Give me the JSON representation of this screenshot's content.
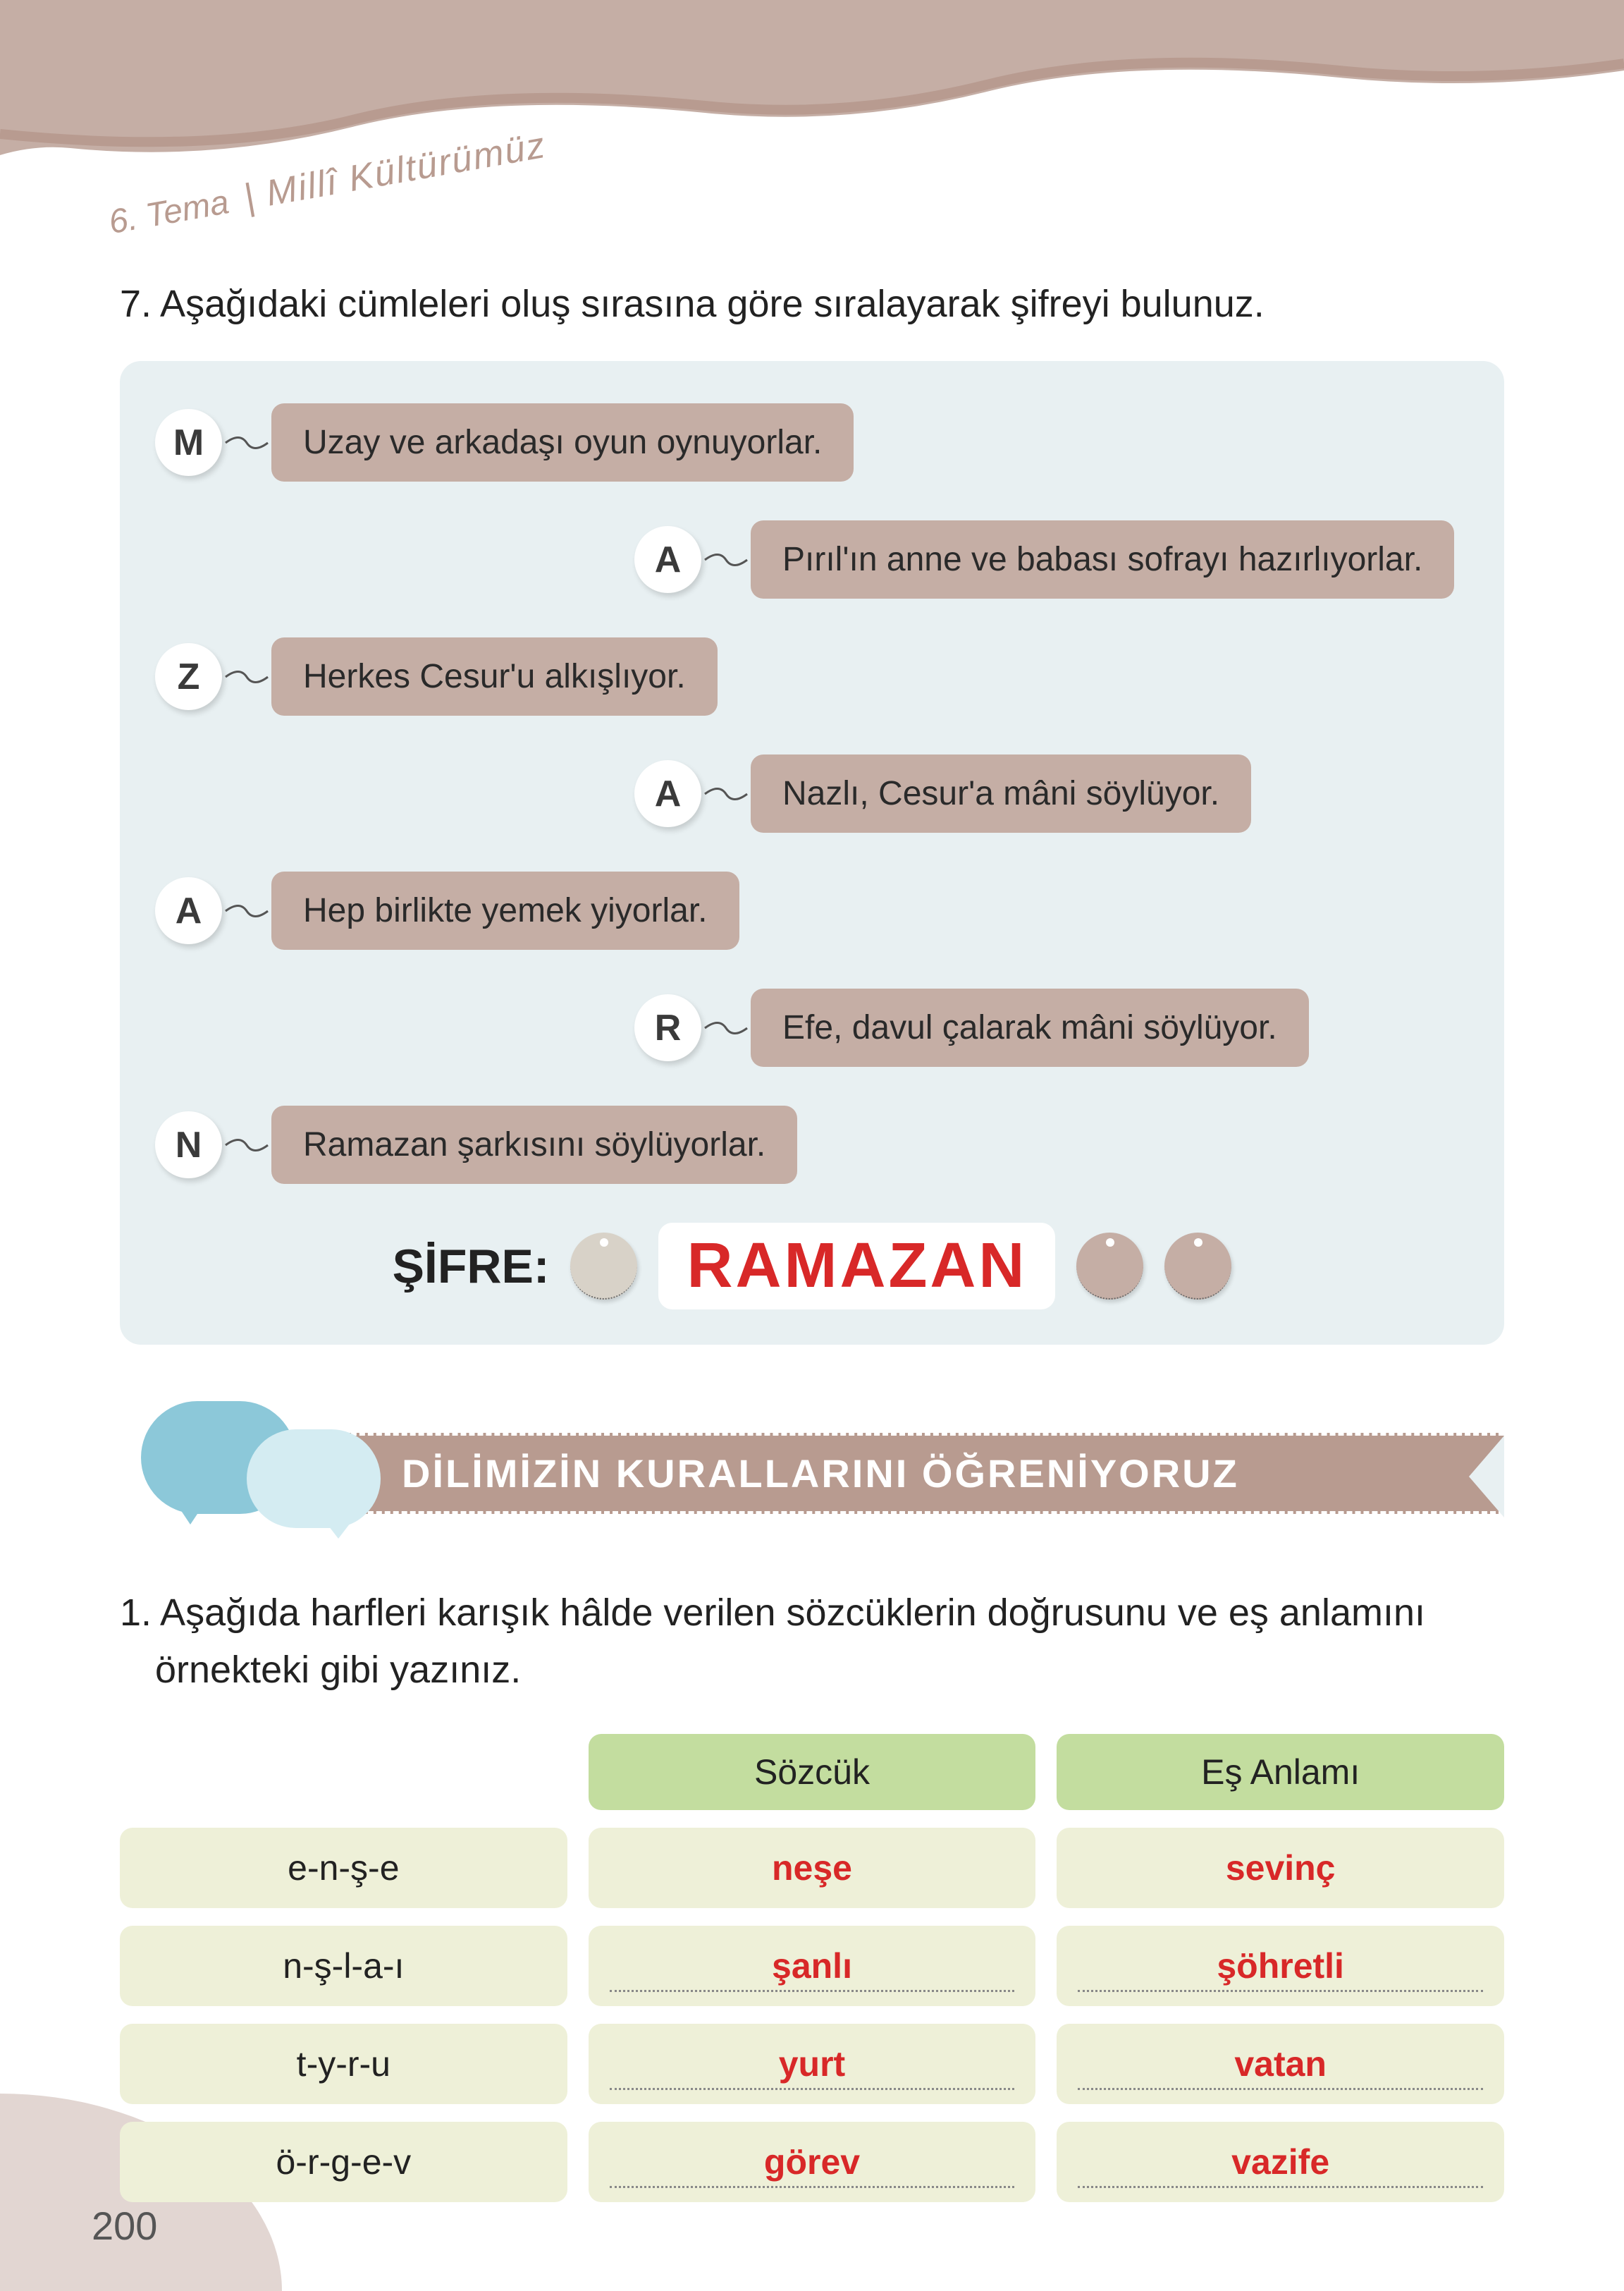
{
  "theme": {
    "number": "6. Tema",
    "title": "| Millî Kültürümüz"
  },
  "q7": {
    "title": "7. Aşağıdaki cümleleri oluş sırasına göre sıralayarak şifreyi bulunuz.",
    "items": [
      {
        "tag": "M",
        "text": "Uzay ve arkadaşı oyun oynuyorlar.",
        "indent": false
      },
      {
        "tag": "A",
        "text": "Pırıl'ın anne ve babası sofrayı hazırlıyorlar.",
        "indent": true
      },
      {
        "tag": "Z",
        "text": "Herkes Cesur'u alkışlıyor.",
        "indent": false
      },
      {
        "tag": "A",
        "text": "Nazlı, Cesur'a mâni söylüyor.",
        "indent": true
      },
      {
        "tag": "A",
        "text": "Hep birlikte yemek yiyorlar.",
        "indent": false
      },
      {
        "tag": "R",
        "text": "Efe, davul çalarak mâni söylüyor.",
        "indent": true
      },
      {
        "tag": "N",
        "text": "Ramazan şarkısını söylüyorlar.",
        "indent": false
      }
    ],
    "sifre_label": "ŞİFRE:",
    "sifre_answer": "RAMAZAN"
  },
  "banner": "DİLİMİZİN KURALLARINI ÖĞRENİYORUZ",
  "q1": {
    "title": "1. Aşağıda harfleri karışık hâlde verilen sözcüklerin doğrusunu ve eş anlamını örnekteki gibi yazınız.",
    "headers": {
      "col2": "Sözcük",
      "col3": "Eş Anlamı"
    },
    "rows": [
      {
        "scrambled": "e-n-ş-e",
        "word": "neşe",
        "synonym": "sevinç",
        "dotted": false
      },
      {
        "scrambled": "n-ş-l-a-ı",
        "word": "şanlı",
        "synonym": "şöhretli",
        "dotted": true
      },
      {
        "scrambled": "t-y-r-u",
        "word": "yurt",
        "synonym": "vatan",
        "dotted": true
      },
      {
        "scrambled": "ö-r-g-e-v",
        "word": "görev",
        "synonym": "vazife",
        "dotted": true
      }
    ]
  },
  "page_number": "200",
  "colors": {
    "mauve": "#c5aea5",
    "mauve_dark": "#b89b90",
    "blue_bg": "#e8f0f2",
    "green_header": "#c3dd9f",
    "green_cell": "#eef0d8",
    "red": "#d82828",
    "bubble_blue": "#8cc8d9",
    "bubble_light": "#d4ecf2"
  }
}
